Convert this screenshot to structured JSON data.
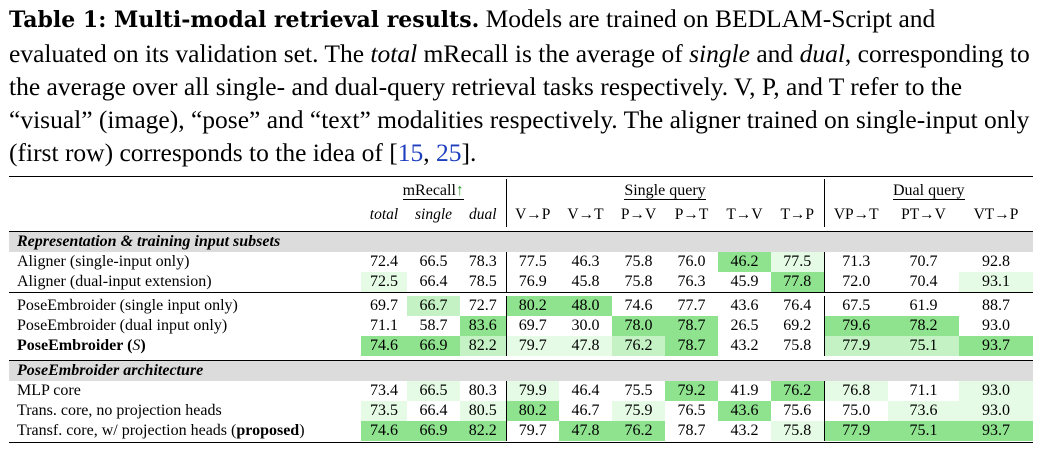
{
  "caption": {
    "label": "Table 1: Multi-modal retrieval results.",
    "p1": " Models are trained on BEDLAM-Script and evaluated on its validation set. The ",
    "em1": "total",
    "p2": " mRecall is the average of ",
    "em2": "single",
    "p3": " and ",
    "em3": "dual",
    "p4": ", corresponding to the average over all single- and dual-query retrieval tasks respectively. V, P, and T refer to the “visual” (image), “pose” and “text” modalities respectively. The aligner trained on single-input only (first row) corresponds to the idea of  [",
    "cite1": "15",
    "p5": ", ",
    "cite2": "25",
    "p6": "]."
  },
  "header": {
    "group_mrecall": "mRecall",
    "group_mrecall_arrow": "↑",
    "group_single": "Single query",
    "group_dual": "Dual query",
    "cols": [
      "total",
      "single",
      "dual",
      "V→P",
      "V→T",
      "P→V",
      "P→T",
      "T→V",
      "T→P",
      "VP→T",
      "PT→V",
      "VT→P"
    ]
  },
  "sections": [
    {
      "title": "Representation & training input subsets",
      "groups": [
        [
          {
            "name": "Aligner (single-input only)",
            "values": [
              "72.4",
              "66.5",
              "78.3",
              "77.5",
              "46.3",
              "75.8",
              "76.0",
              "46.2",
              "77.5",
              "71.3",
              "70.7",
              "92.8"
            ],
            "shade": [
              "",
              "",
              "",
              "",
              "",
              "",
              "",
              "g1",
              "g3",
              "",
              "",
              ""
            ]
          },
          {
            "name": "Aligner (dual-input extension)",
            "values": [
              "72.5",
              "66.4",
              "78.5",
              "76.9",
              "45.8",
              "75.8",
              "76.3",
              "45.9",
              "77.8",
              "72.0",
              "70.4",
              "93.1"
            ],
            "shade": [
              "g3",
              "",
              "",
              "",
              "",
              "",
              "",
              "",
              "g1",
              "",
              "",
              "g3"
            ]
          }
        ],
        [
          {
            "name": "PoseEmbroider (single input only)",
            "values": [
              "69.7",
              "66.7",
              "72.7",
              "80.2",
              "48.0",
              "74.6",
              "77.7",
              "43.6",
              "76.4",
              "67.5",
              "61.9",
              "88.7"
            ],
            "shade": [
              "",
              "g2",
              "",
              "g1",
              "g1",
              "",
              "",
              "",
              "",
              "",
              "",
              ""
            ]
          },
          {
            "name": "PoseEmbroider (dual input only)",
            "values": [
              "71.1",
              "58.7",
              "83.6",
              "69.7",
              "30.0",
              "78.0",
              "78.7",
              "26.5",
              "69.2",
              "79.6",
              "78.2",
              "93.0"
            ],
            "shade": [
              "",
              "",
              "g1",
              "",
              "",
              "g1",
              "g1",
              "",
              "",
              "g1",
              "g1",
              ""
            ]
          },
          {
            "name": "PoseEmbroider (S)",
            "bold": true,
            "values": [
              "74.6",
              "66.9",
              "82.2",
              "79.7",
              "47.8",
              "76.2",
              "78.7",
              "43.2",
              "75.8",
              "77.9",
              "75.1",
              "93.7"
            ],
            "shade": [
              "g1",
              "g1",
              "g2",
              "g3",
              "g3",
              "g2",
              "g1",
              "",
              "",
              "g2",
              "g2",
              "g1"
            ]
          }
        ]
      ]
    },
    {
      "title": "PoseEmbroider architecture",
      "groups": [
        [
          {
            "name": "MLP core",
            "values": [
              "73.4",
              "66.5",
              "80.3",
              "79.9",
              "46.4",
              "75.5",
              "79.2",
              "41.9",
              "76.2",
              "76.8",
              "71.1",
              "93.0"
            ],
            "shade": [
              "",
              "g3",
              "",
              "g3",
              "",
              "",
              "g1",
              "",
              "g1",
              "g3",
              "",
              "g3"
            ]
          },
          {
            "name": "Trans. core, no projection heads",
            "values": [
              "73.5",
              "66.4",
              "80.5",
              "80.2",
              "46.7",
              "75.9",
              "76.5",
              "43.6",
              "75.6",
              "75.0",
              "73.6",
              "93.0"
            ],
            "shade": [
              "g3",
              "",
              "g3",
              "g1",
              "",
              "g3",
              "",
              "g1",
              "",
              "",
              "g3",
              "g3"
            ]
          },
          {
            "name": "Transf. core, w/ projection heads",
            "name_suffix": "proposed",
            "values": [
              "74.6",
              "66.9",
              "82.2",
              "79.7",
              "47.8",
              "76.2",
              "78.7",
              "43.2",
              "75.8",
              "77.9",
              "75.1",
              "93.7"
            ],
            "shade": [
              "g1",
              "g1",
              "g1",
              "",
              "g1",
              "g1",
              "",
              "",
              "g3",
              "g1",
              "g1",
              "g1"
            ]
          }
        ]
      ]
    }
  ]
}
